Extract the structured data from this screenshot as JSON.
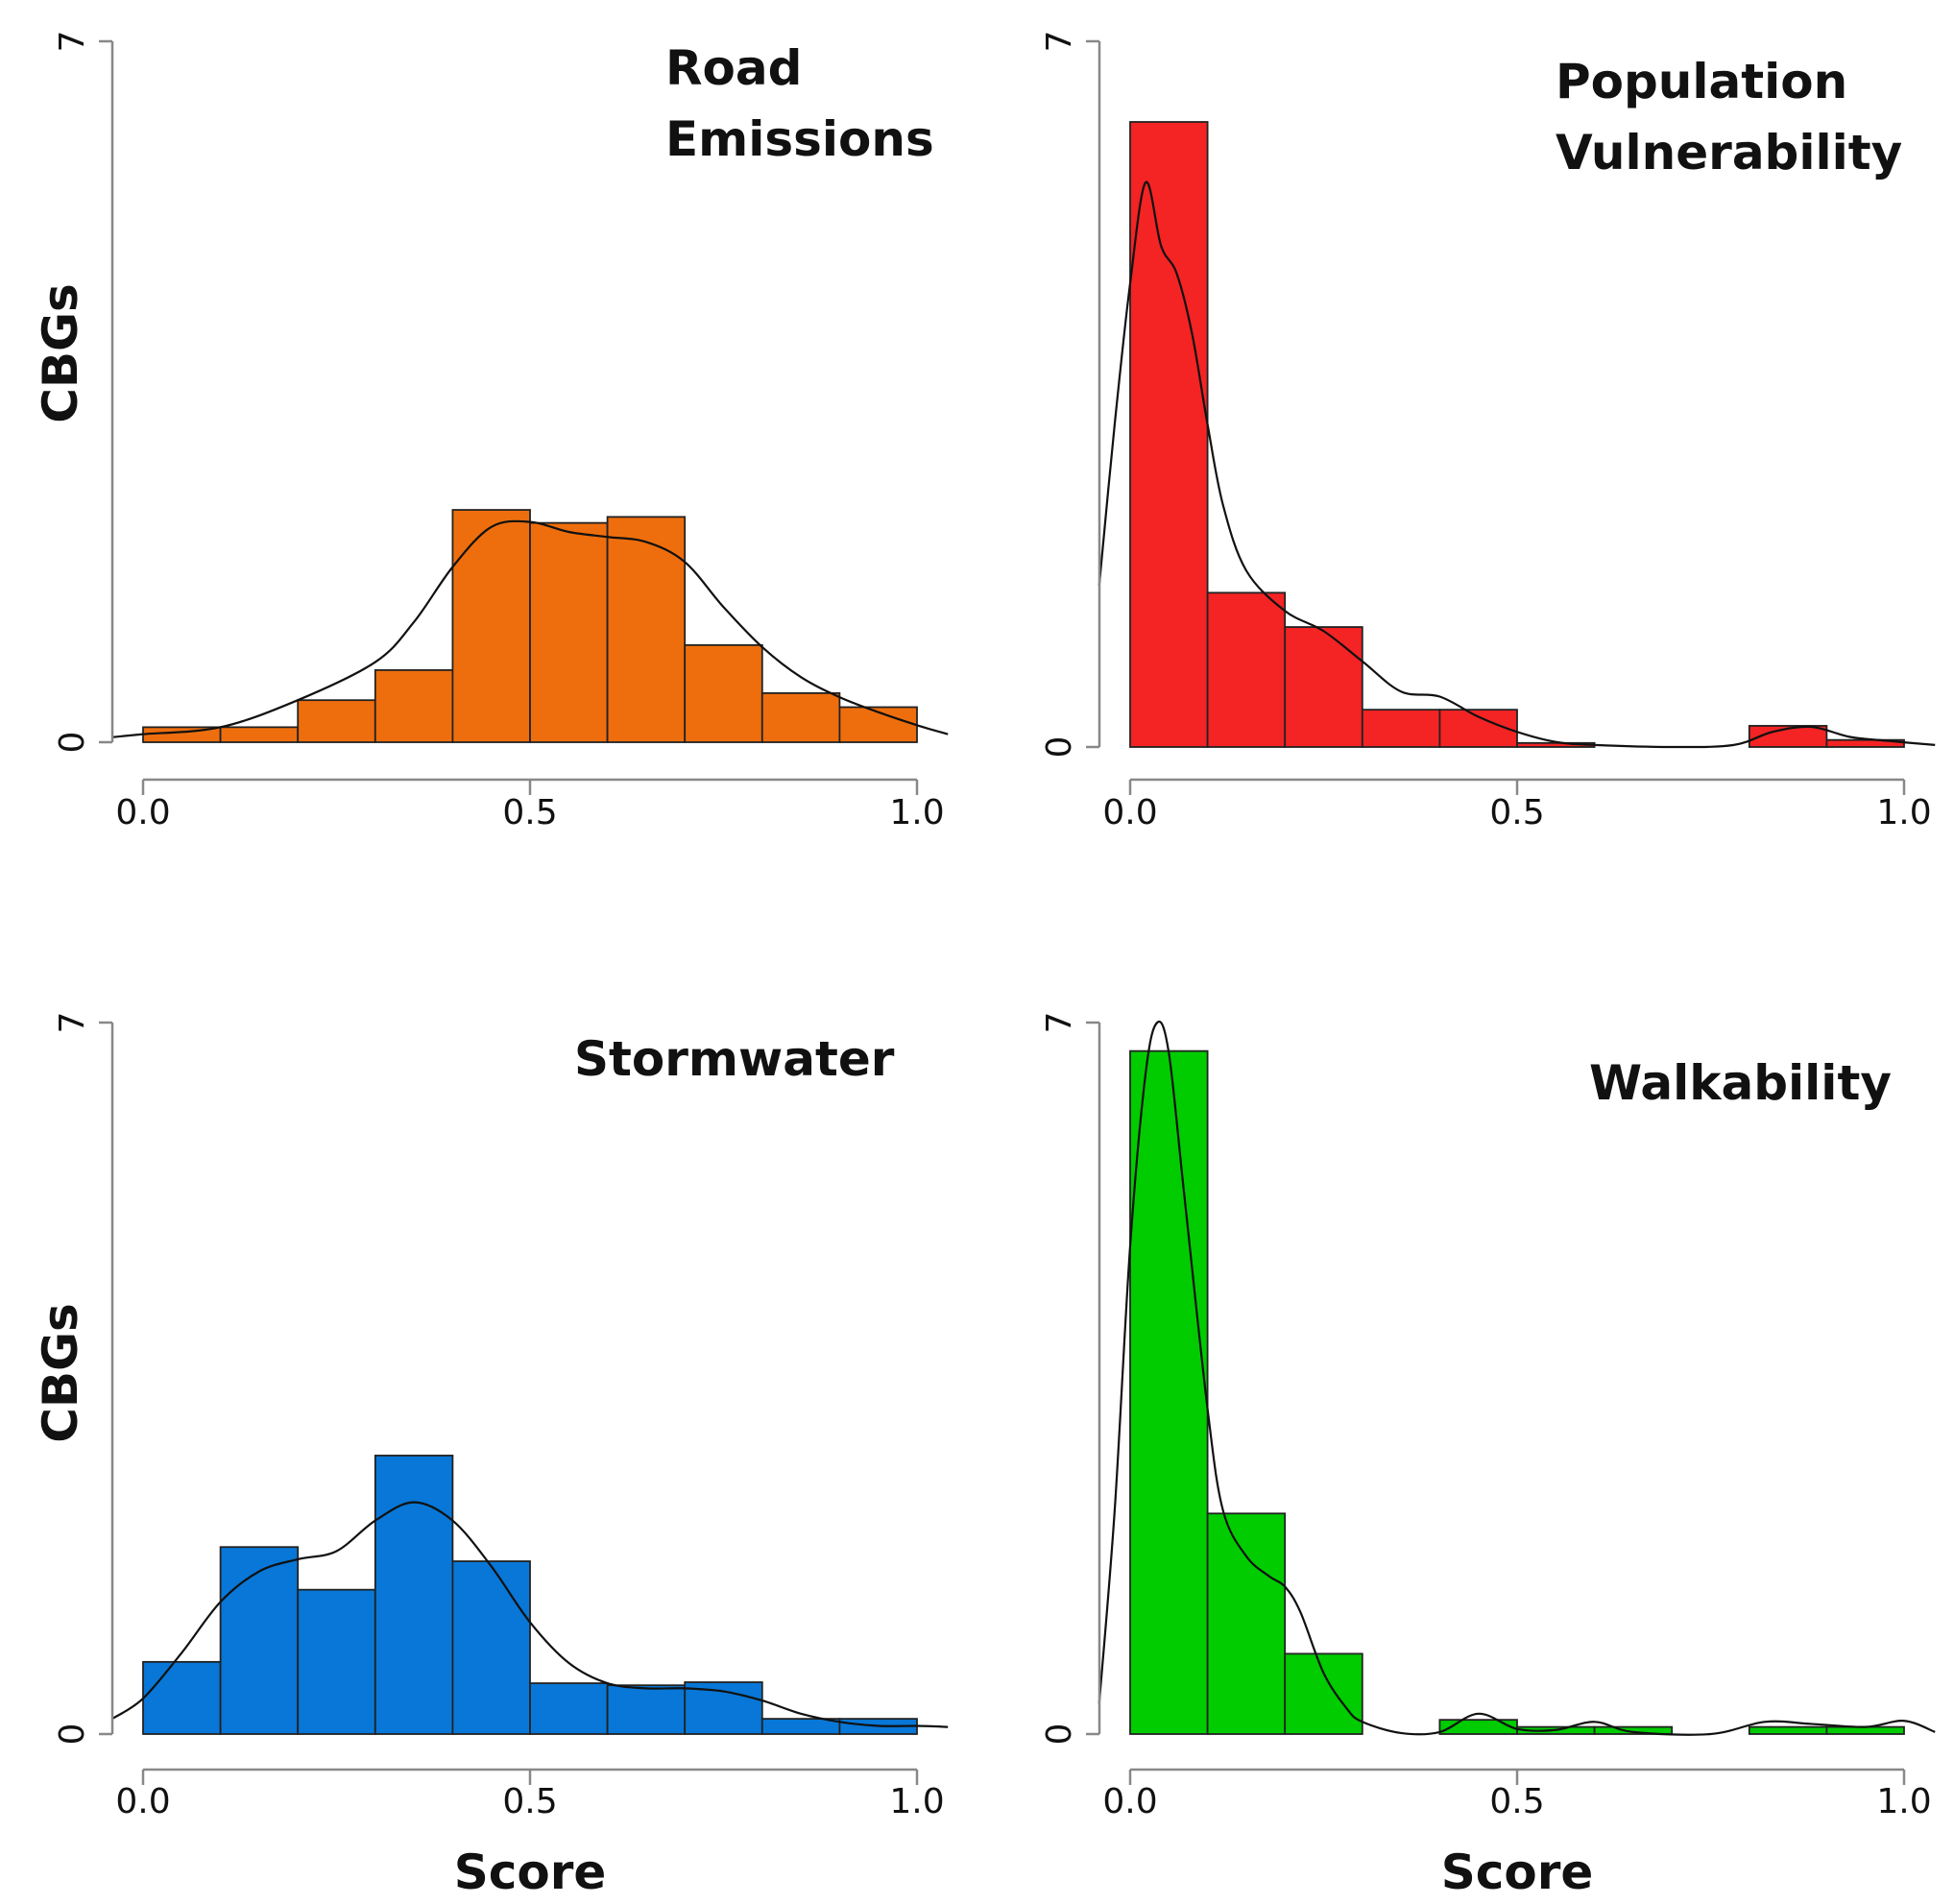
{
  "chart_data": [
    {
      "type": "histogram",
      "title_lines": [
        "Road",
        "Emissions"
      ],
      "xlabel": "",
      "ylabel": "CBGs",
      "xlim": [
        0,
        1
      ],
      "ylim": [
        0,
        7
      ],
      "xticks": [
        "0.0",
        "0.5",
        "1.0"
      ],
      "yticks": [
        "0",
        "7"
      ],
      "bin_edges": [
        0.0,
        0.1,
        0.2,
        0.3,
        0.4,
        0.5,
        0.6,
        0.7,
        0.8,
        0.9,
        1.0
      ],
      "counts": [
        0.15,
        0.15,
        0.42,
        0.72,
        2.32,
        2.19,
        2.25,
        0.97,
        0.49,
        0.35
      ],
      "color": "#ee6e0d",
      "density": [
        [
          -0.04,
          0.05
        ],
        [
          0.0,
          0.08
        ],
        [
          0.1,
          0.15
        ],
        [
          0.2,
          0.42
        ],
        [
          0.3,
          0.8
        ],
        [
          0.35,
          1.2
        ],
        [
          0.4,
          1.75
        ],
        [
          0.45,
          2.15
        ],
        [
          0.5,
          2.2
        ],
        [
          0.55,
          2.1
        ],
        [
          0.6,
          2.05
        ],
        [
          0.65,
          2.0
        ],
        [
          0.7,
          1.8
        ],
        [
          0.75,
          1.35
        ],
        [
          0.8,
          0.95
        ],
        [
          0.85,
          0.65
        ],
        [
          0.9,
          0.45
        ],
        [
          0.95,
          0.3
        ],
        [
          1.0,
          0.17
        ],
        [
          1.04,
          0.08
        ]
      ]
    },
    {
      "type": "histogram",
      "title_lines": [
        "Population",
        "Vulnerability"
      ],
      "xlabel": "",
      "ylabel": "",
      "xlim": [
        0,
        1
      ],
      "ylim": [
        0,
        7
      ],
      "xticks": [
        "0.0",
        "0.5",
        "1.0"
      ],
      "yticks": [
        "0",
        "7"
      ],
      "bin_edges": [
        0.0,
        0.1,
        0.2,
        0.3,
        0.4,
        0.5,
        0.6,
        0.7,
        0.8,
        0.9,
        1.0
      ],
      "counts": [
        6.2,
        1.53,
        1.19,
        0.37,
        0.37,
        0.04,
        0.0,
        0.0,
        0.21,
        0.07
      ],
      "color": "#f42324",
      "density": [
        [
          -0.04,
          1.6
        ],
        [
          -0.02,
          3.2
        ],
        [
          0.0,
          4.6
        ],
        [
          0.02,
          5.6
        ],
        [
          0.04,
          4.97
        ],
        [
          0.06,
          4.7
        ],
        [
          0.08,
          4.1
        ],
        [
          0.1,
          3.2
        ],
        [
          0.12,
          2.4
        ],
        [
          0.15,
          1.75
        ],
        [
          0.2,
          1.35
        ],
        [
          0.25,
          1.15
        ],
        [
          0.3,
          0.85
        ],
        [
          0.35,
          0.55
        ],
        [
          0.4,
          0.5
        ],
        [
          0.45,
          0.3
        ],
        [
          0.5,
          0.15
        ],
        [
          0.55,
          0.05
        ],
        [
          0.6,
          0.02
        ],
        [
          0.7,
          0.0
        ],
        [
          0.78,
          0.02
        ],
        [
          0.83,
          0.15
        ],
        [
          0.88,
          0.2
        ],
        [
          0.93,
          0.1
        ],
        [
          0.98,
          0.06
        ],
        [
          1.04,
          0.02
        ]
      ]
    },
    {
      "type": "histogram",
      "title_lines": [
        "Stormwater"
      ],
      "xlabel": "Score",
      "ylabel": "CBGs",
      "xlim": [
        0,
        1
      ],
      "ylim": [
        0,
        7
      ],
      "xticks": [
        "0.0",
        "0.5",
        "1.0"
      ],
      "yticks": [
        "0",
        "7"
      ],
      "bin_edges": [
        0.0,
        0.1,
        0.2,
        0.3,
        0.4,
        0.5,
        0.6,
        0.7,
        0.8,
        0.9,
        1.0
      ],
      "counts": [
        0.71,
        1.84,
        1.42,
        2.74,
        1.7,
        0.5,
        0.48,
        0.51,
        0.15,
        0.15
      ],
      "color": "#0877d7",
      "density": [
        [
          -0.04,
          0.15
        ],
        [
          0.0,
          0.35
        ],
        [
          0.05,
          0.8
        ],
        [
          0.1,
          1.3
        ],
        [
          0.15,
          1.6
        ],
        [
          0.2,
          1.72
        ],
        [
          0.25,
          1.8
        ],
        [
          0.3,
          2.1
        ],
        [
          0.35,
          2.28
        ],
        [
          0.4,
          2.1
        ],
        [
          0.45,
          1.65
        ],
        [
          0.5,
          1.1
        ],
        [
          0.55,
          0.7
        ],
        [
          0.6,
          0.5
        ],
        [
          0.65,
          0.45
        ],
        [
          0.7,
          0.45
        ],
        [
          0.75,
          0.42
        ],
        [
          0.8,
          0.33
        ],
        [
          0.85,
          0.2
        ],
        [
          0.9,
          0.12
        ],
        [
          0.95,
          0.08
        ],
        [
          1.0,
          0.08
        ],
        [
          1.04,
          0.07
        ]
      ]
    },
    {
      "type": "histogram",
      "title_lines": [
        "Walkability"
      ],
      "xlabel": "Score",
      "ylabel": "",
      "xlim": [
        0,
        1
      ],
      "ylim": [
        0,
        7
      ],
      "xticks": [
        "0.0",
        "0.5",
        "1.0"
      ],
      "yticks": [
        "0",
        "7"
      ],
      "bin_edges": [
        0.0,
        0.1,
        0.2,
        0.3,
        0.4,
        0.5,
        0.6,
        0.7,
        0.8,
        0.9,
        1.0
      ],
      "counts": [
        6.72,
        2.17,
        0.79,
        0.0,
        0.14,
        0.07,
        0.07,
        0.0,
        0.07,
        0.07
      ],
      "color": "#00cc00",
      "density": [
        [
          -0.04,
          0.3
        ],
        [
          -0.02,
          2.2
        ],
        [
          0.0,
          4.8
        ],
        [
          0.02,
          6.5
        ],
        [
          0.035,
          7.0
        ],
        [
          0.05,
          6.7
        ],
        [
          0.07,
          5.3
        ],
        [
          0.1,
          3.2
        ],
        [
          0.12,
          2.2
        ],
        [
          0.15,
          1.75
        ],
        [
          0.18,
          1.55
        ],
        [
          0.2,
          1.45
        ],
        [
          0.22,
          1.2
        ],
        [
          0.25,
          0.6
        ],
        [
          0.28,
          0.25
        ],
        [
          0.3,
          0.12
        ],
        [
          0.35,
          0.01
        ],
        [
          0.4,
          0.02
        ],
        [
          0.45,
          0.2
        ],
        [
          0.5,
          0.05
        ],
        [
          0.55,
          0.04
        ],
        [
          0.6,
          0.12
        ],
        [
          0.65,
          0.02
        ],
        [
          0.75,
          0.0
        ],
        [
          0.82,
          0.12
        ],
        [
          0.88,
          0.1
        ],
        [
          0.95,
          0.07
        ],
        [
          1.0,
          0.13
        ],
        [
          1.04,
          0.02
        ]
      ]
    }
  ],
  "colors": {
    "axis": "#888888",
    "text": "#111111",
    "bar_edge": "#222222",
    "density_line": "#111111"
  }
}
